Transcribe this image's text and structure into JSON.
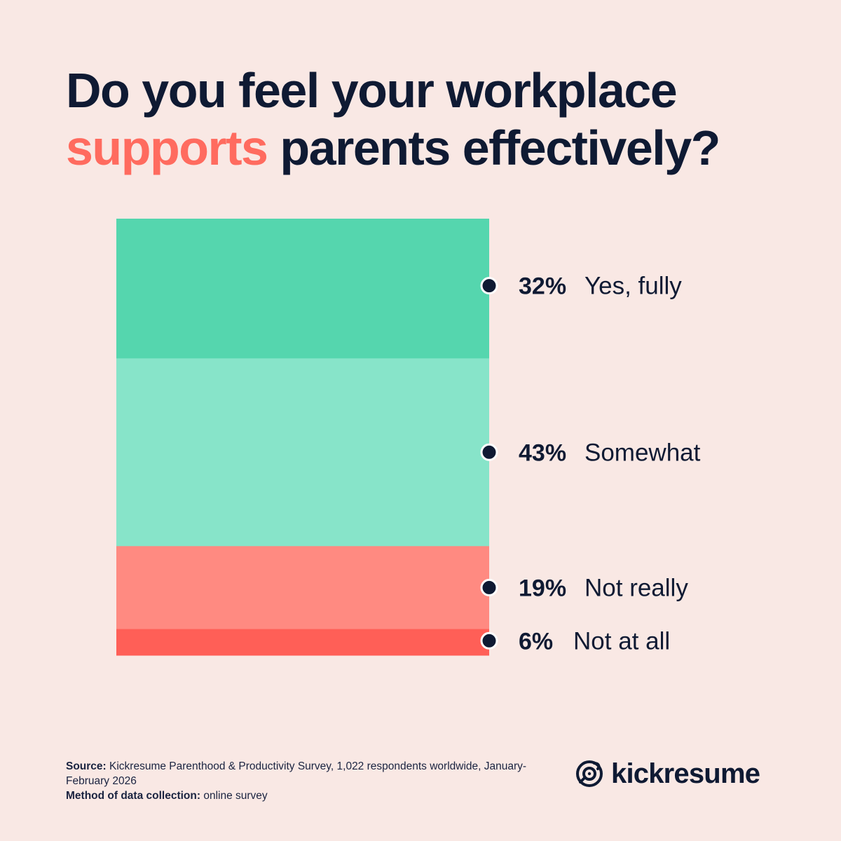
{
  "title": {
    "line1": "Do you feel your workplace",
    "highlight": "supports",
    "line2_rest": " parents effectively?"
  },
  "colors": {
    "background": "#f9e8e4",
    "text": "#0f1a33",
    "accent": "#ff6b5f",
    "dot_outline": "#ffffff"
  },
  "chart_data": {
    "type": "bar",
    "subtype": "stacked-100",
    "categories": [
      "Yes, fully",
      "Somewhat",
      "Not really",
      "Not at all"
    ],
    "values": [
      32,
      43,
      19,
      6
    ],
    "labels": [
      "32%",
      "43%",
      "19%",
      "6%"
    ],
    "colors": [
      "#55d6ae",
      "#87e4c9",
      "#ff8a81",
      "#ff5f57"
    ],
    "unit": "%",
    "ylim": [
      0,
      100
    ],
    "grid": false,
    "legend": "right-of-bar"
  },
  "footer": {
    "source_label": "Source:",
    "source_text": " Kickresume Parenthood & Productivity Survey, 1,022 respondents worldwide, January-February 2026",
    "method_label": "Method of data collection:",
    "method_text": " online survey"
  },
  "logo": {
    "text": "kickresume",
    "icon": "kickresume-logo-icon"
  }
}
